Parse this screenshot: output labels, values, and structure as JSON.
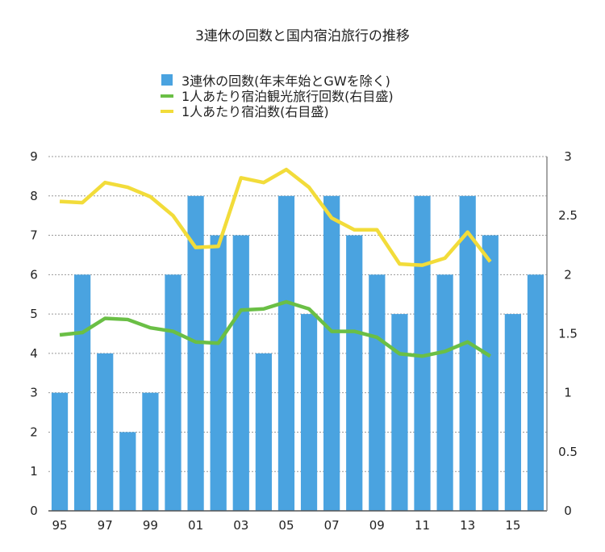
{
  "chart_data": {
    "type": "bar",
    "title": "3連休の回数と国内宿泊旅行の推移",
    "categories": [
      "95",
      "96",
      "97",
      "98",
      "99",
      "00",
      "01",
      "02",
      "03",
      "04",
      "05",
      "06",
      "07",
      "08",
      "09",
      "10",
      "11",
      "12",
      "13",
      "14",
      "15",
      "16"
    ],
    "x_tick_labels": [
      "95",
      "97",
      "99",
      "01",
      "03",
      "05",
      "07",
      "09",
      "11",
      "13",
      "15"
    ],
    "series": [
      {
        "name": "3連休の回数(年末年始とGWを除く)",
        "type": "bar",
        "axis": "left",
        "color": "#4aa3e0",
        "values": [
          3,
          6,
          4,
          2,
          3,
          6,
          8,
          7,
          7,
          4,
          8,
          5,
          8,
          7,
          6,
          5,
          8,
          6,
          8,
          7,
          5,
          6
        ]
      },
      {
        "name": "1人あたり宿泊観光旅行回数(右目盛)",
        "type": "line",
        "axis": "right",
        "color": "#6abf45",
        "values": [
          1.49,
          1.51,
          1.63,
          1.62,
          1.55,
          1.52,
          1.43,
          1.42,
          1.7,
          1.71,
          1.77,
          1.71,
          1.52,
          1.52,
          1.47,
          1.33,
          1.31,
          1.35,
          1.43,
          1.31,
          null,
          null
        ]
      },
      {
        "name": "1人あたり宿泊数(右目盛)",
        "type": "line",
        "axis": "right",
        "color": "#f2dc3a",
        "values": [
          2.62,
          2.61,
          2.78,
          2.74,
          2.66,
          2.5,
          2.23,
          2.24,
          2.82,
          2.78,
          2.89,
          2.74,
          2.48,
          2.38,
          2.38,
          2.09,
          2.08,
          2.14,
          2.36,
          2.11,
          null,
          null
        ]
      }
    ],
    "y_left": {
      "min": 0,
      "max": 9,
      "ticks": [
        "0",
        "1",
        "2",
        "3",
        "4",
        "5",
        "6",
        "7",
        "8",
        "9"
      ]
    },
    "y_right": {
      "min": 0,
      "max": 3,
      "ticks": [
        "0",
        "0.5",
        "1",
        "1.5",
        "2",
        "2.5",
        "3"
      ]
    },
    "xlabel": "",
    "ylabel": "",
    "grid": true,
    "legend_position": "top-center"
  }
}
